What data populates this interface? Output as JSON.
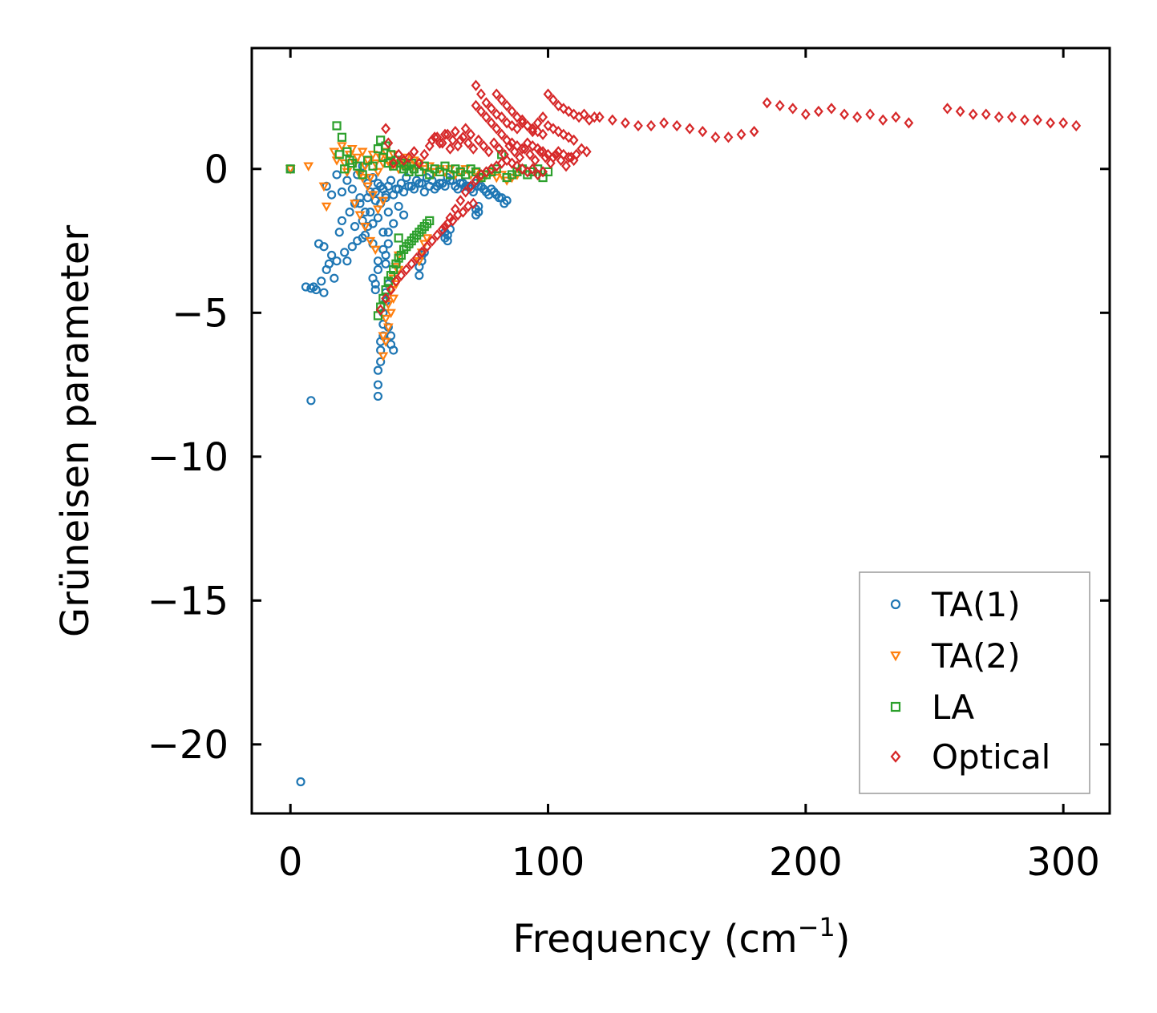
{
  "chart_data": {
    "type": "scatter",
    "title": "",
    "xlabel": "Frequency (cm",
    "xlabel_sup": "−1",
    "xlabel_close": ")",
    "ylabel": "Grüneisen parameter",
    "xlim": [
      -15,
      318
    ],
    "ylim": [
      -22.4,
      4.2
    ],
    "xticks": [
      0,
      100,
      200,
      300
    ],
    "xtick_labels": [
      "0",
      "100",
      "200",
      "300"
    ],
    "yticks": [
      0,
      -5,
      -10,
      -15,
      -20
    ],
    "ytick_labels": [
      "0",
      "−5",
      "−10",
      "−15",
      "−20"
    ],
    "grid": false,
    "legend_position": "lower-right",
    "series": [
      {
        "name": "TA(1)",
        "marker": "circle",
        "color": "#1f77b4",
        "x": [
          0,
          4,
          8,
          6,
          8,
          10,
          12,
          13,
          14,
          9,
          11,
          13,
          15,
          16,
          17,
          18,
          19,
          20,
          21,
          22,
          23,
          24,
          25,
          26,
          27,
          28,
          29,
          30,
          31,
          32,
          33,
          34,
          35,
          36,
          37,
          38,
          40,
          42,
          44,
          46,
          48,
          50,
          52,
          54,
          56,
          58,
          60,
          62,
          64,
          66,
          68,
          70,
          72,
          74,
          76,
          78,
          80,
          82,
          84,
          34,
          34,
          34,
          35,
          35,
          35,
          36,
          36,
          36,
          37,
          37,
          38,
          38,
          39,
          39,
          40,
          32,
          33,
          34,
          33,
          34,
          36,
          37,
          38,
          37,
          38,
          50,
          50,
          51,
          51,
          52,
          60,
          60,
          61,
          61,
          62,
          72,
          72,
          73,
          73,
          14,
          16,
          18,
          20,
          22,
          24,
          26,
          28,
          30,
          32,
          25,
          27,
          29,
          31,
          33,
          35,
          37,
          39,
          41,
          43,
          45,
          47,
          49,
          51,
          53,
          55,
          57,
          59,
          61,
          63,
          65,
          67,
          69,
          71,
          73,
          75,
          77,
          79,
          81,
          83,
          28,
          30,
          32,
          34,
          36,
          38,
          40,
          42,
          44
        ],
        "y": [
          0,
          -21.3,
          -8.05,
          -4.1,
          -4.15,
          -4.2,
          -3.9,
          -4.3,
          -3.5,
          -4.1,
          -2.6,
          -2.7,
          -3.3,
          -3.0,
          -3.8,
          -3.2,
          -2.2,
          -1.8,
          -2.9,
          -3.2,
          -1.5,
          -2.7,
          -2.0,
          -2.5,
          -1.2,
          -1.8,
          -2.3,
          -1.0,
          -1.5,
          -1.9,
          -0.8,
          -0.5,
          -1.2,
          -0.7,
          -1.0,
          -0.6,
          -0.9,
          -0.7,
          -0.8,
          -0.6,
          -0.7,
          -0.5,
          -0.8,
          -0.6,
          -0.7,
          -0.5,
          -0.6,
          -0.4,
          -0.6,
          -0.5,
          -0.6,
          -0.7,
          -0.5,
          -0.6,
          -0.8,
          -0.7,
          -0.9,
          -1.0,
          -1.1,
          -7.9,
          -7.5,
          -7.0,
          -6.7,
          -6.3,
          -6.0,
          -5.8,
          -5.4,
          -5.0,
          -4.6,
          -4.3,
          -4.0,
          -5.5,
          -5.8,
          -6.1,
          -6.3,
          -3.8,
          -4.0,
          -3.2,
          -4.2,
          -3.5,
          -2.8,
          -3.0,
          -2.6,
          -3.3,
          -2.2,
          -3.7,
          -3.4,
          -3.2,
          -3.0,
          -2.9,
          -2.2,
          -2.4,
          -2.5,
          -2.3,
          -2.1,
          -1.4,
          -1.6,
          -1.5,
          -1.3,
          -0.6,
          -0.9,
          -0.2,
          -0.8,
          -0.4,
          -0.7,
          -0.2,
          0.1,
          -0.5,
          -0.3,
          -1.2,
          -1.0,
          -1.5,
          -0.8,
          -1.1,
          -0.6,
          -0.9,
          -0.4,
          -0.7,
          -0.5,
          -0.3,
          -0.6,
          -0.4,
          -0.5,
          -0.3,
          -0.4,
          -0.6,
          -0.5,
          -0.3,
          -0.4,
          -0.7,
          -0.5,
          -0.6,
          -0.8,
          -0.6,
          -0.7,
          -0.9,
          -0.8,
          -1.0,
          -1.2,
          -2.4,
          -2.0,
          -2.6,
          -1.7,
          -2.2,
          -1.5,
          -1.9,
          -1.3,
          -1.6
        ]
      },
      {
        "name": "TA(2)",
        "marker": "triangle-down",
        "color": "#ff7f0e",
        "x": [
          0,
          7,
          13,
          14,
          17,
          18,
          20,
          21,
          22,
          23,
          24,
          25,
          26,
          27,
          28,
          29,
          30,
          31,
          32,
          33,
          34,
          35,
          36,
          37,
          38,
          39,
          40,
          41,
          42,
          43,
          44,
          45,
          46,
          47,
          48,
          49,
          50,
          52,
          54,
          56,
          58,
          60,
          62,
          64,
          66,
          68,
          70,
          72,
          74,
          76,
          78,
          80,
          82,
          84,
          86,
          88,
          36,
          37,
          38,
          39,
          40,
          41,
          42,
          36,
          37,
          38,
          39,
          40,
          41,
          42,
          50,
          51,
          52,
          53,
          25,
          27,
          29,
          31,
          33,
          28,
          30,
          32,
          34,
          36
        ],
        "y": [
          0,
          0.1,
          -0.6,
          -1.3,
          0.6,
          0.3,
          0.8,
          0.2,
          -0.1,
          0.5,
          0.7,
          0.2,
          0.4,
          -0.2,
          0.6,
          0.1,
          0.3,
          -0.3,
          0.5,
          0.2,
          -0.1,
          0.4,
          0.2,
          0.6,
          0.3,
          0.1,
          0.5,
          0.2,
          0.0,
          0.3,
          0.1,
          0.4,
          0.2,
          0.0,
          0.3,
          0.1,
          0.2,
          0.0,
          0.1,
          -0.1,
          0.0,
          -0.1,
          0.0,
          -0.2,
          -0.1,
          0.0,
          -0.2,
          -0.1,
          -0.3,
          -0.2,
          -0.1,
          -0.3,
          -0.2,
          -0.4,
          -0.3,
          -0.2,
          -6.5,
          -6.0,
          -5.5,
          -5.0,
          -4.5,
          -4.0,
          -3.5,
          -5.8,
          -5.2,
          -4.7,
          -4.2,
          -3.8,
          -3.4,
          -3.0,
          -3.2,
          -2.9,
          -2.6,
          -2.4,
          -1.2,
          -1.6,
          -2.0,
          -2.5,
          -2.8,
          -0.3,
          -0.6,
          -0.9,
          -1.4,
          -1.1
        ]
      },
      {
        "name": "LA",
        "marker": "square",
        "color": "#2ca02c",
        "x": [
          0,
          18,
          19,
          20,
          21,
          22,
          23,
          24,
          26,
          28,
          30,
          32,
          34,
          35,
          36,
          37,
          38,
          39,
          40,
          41,
          42,
          43,
          44,
          45,
          46,
          47,
          48,
          50,
          52,
          54,
          56,
          58,
          60,
          62,
          64,
          66,
          68,
          70,
          72,
          74,
          76,
          78,
          80,
          82,
          84,
          86,
          88,
          90,
          92,
          94,
          96,
          98,
          100,
          34,
          35,
          36,
          37,
          38,
          39,
          40,
          41,
          42,
          43,
          44,
          45,
          46,
          47,
          48,
          49,
          50,
          51,
          52,
          53,
          54
        ],
        "y": [
          0,
          1.5,
          0.5,
          1.1,
          0.0,
          0.6,
          0.3,
          0.2,
          0.1,
          -0.2,
          0.3,
          0.1,
          0.7,
          1.0,
          0.4,
          0.8,
          0.2,
          0.5,
          0.1,
          0.3,
          -2.4,
          0.2,
          0.0,
          0.1,
          -0.1,
          0.2,
          0.0,
          -0.1,
          0.1,
          -0.2,
          0.0,
          -0.1,
          0.1,
          -0.2,
          0.0,
          -0.1,
          -0.2,
          0.0,
          -0.1,
          -0.3,
          -0.2,
          -0.1,
          0.0,
          0.5,
          -0.3,
          -0.2,
          -0.1,
          0.0,
          -0.2,
          -0.1,
          0.0,
          -0.3,
          -0.1,
          -5.1,
          -4.8,
          -4.5,
          -4.2,
          -3.9,
          -3.7,
          -3.5,
          -3.3,
          -3.1,
          -3.0,
          -2.8,
          -2.7,
          -2.6,
          -2.5,
          -2.4,
          -2.3,
          -2.2,
          -2.1,
          -2.0,
          -1.9,
          -1.8
        ]
      },
      {
        "name": "Optical",
        "marker": "diamond",
        "color": "#d62728",
        "x": [
          37,
          38,
          40,
          42,
          44,
          46,
          48,
          50,
          52,
          54,
          56,
          58,
          60,
          62,
          64,
          66,
          68,
          70,
          72,
          74,
          76,
          78,
          80,
          82,
          84,
          86,
          88,
          90,
          92,
          94,
          96,
          98,
          100,
          102,
          104,
          106,
          108,
          110,
          112,
          114,
          116,
          118,
          120,
          125,
          130,
          135,
          140,
          145,
          150,
          155,
          160,
          165,
          170,
          175,
          180,
          185,
          190,
          195,
          200,
          205,
          210,
          215,
          220,
          225,
          230,
          235,
          240,
          255,
          260,
          265,
          270,
          275,
          280,
          285,
          290,
          295,
          300,
          305,
          35,
          37,
          39,
          41,
          43,
          45,
          47,
          49,
          51,
          53,
          55,
          57,
          59,
          61,
          63,
          65,
          67,
          69,
          71,
          55,
          57,
          59,
          61,
          63,
          65,
          67,
          69,
          71,
          73,
          75,
          77,
          79,
          81,
          83,
          85,
          87,
          89,
          91,
          93,
          95,
          97,
          99,
          101,
          103,
          105,
          107,
          109,
          111,
          113,
          115,
          80,
          82,
          84,
          86,
          88,
          90,
          92,
          94,
          96,
          98,
          100,
          102,
          104,
          106,
          108,
          110,
          72,
          74,
          76,
          78,
          80,
          82,
          84,
          86,
          88,
          90,
          92,
          94,
          96,
          98,
          100,
          102,
          104,
          106,
          108,
          110,
          60,
          62,
          64,
          66,
          68,
          70,
          72,
          74,
          76,
          78,
          80,
          82,
          84,
          86,
          88,
          90,
          92,
          94,
          96,
          98
        ],
        "y": [
          1.4,
          0.9,
          0.2,
          0.5,
          0.3,
          0.4,
          0.6,
          0.2,
          0.5,
          0.8,
          1.1,
          0.9,
          1.2,
          0.7,
          1.3,
          1.0,
          1.4,
          1.2,
          2.9,
          2.6,
          2.3,
          2.1,
          1.9,
          1.8,
          1.6,
          1.5,
          1.4,
          1.7,
          1.5,
          1.3,
          1.6,
          1.8,
          2.6,
          2.4,
          2.2,
          2.1,
          2.0,
          1.9,
          1.8,
          1.9,
          1.7,
          1.8,
          1.8,
          1.7,
          1.6,
          1.5,
          1.5,
          1.6,
          1.5,
          1.4,
          1.3,
          1.1,
          1.1,
          1.2,
          1.3,
          2.3,
          2.2,
          2.1,
          1.9,
          2.0,
          2.1,
          1.9,
          1.8,
          1.9,
          1.7,
          1.8,
          1.6,
          2.1,
          2.0,
          1.9,
          1.9,
          1.8,
          1.8,
          1.7,
          1.7,
          1.6,
          1.6,
          1.5,
          -4.9,
          -4.5,
          -4.2,
          -3.9,
          -3.7,
          -3.5,
          -3.3,
          -3.1,
          -2.9,
          -2.7,
          -2.5,
          -2.3,
          -2.1,
          -1.9,
          -1.8,
          -1.6,
          -1.5,
          -1.3,
          -1.2,
          1.0,
          1.1,
          0.9,
          1.2,
          1.0,
          0.8,
          1.1,
          0.9,
          0.7,
          1.0,
          0.8,
          0.6,
          0.9,
          0.7,
          0.5,
          0.8,
          0.6,
          0.4,
          0.7,
          0.5,
          0.3,
          0.6,
          0.4,
          0.2,
          0.5,
          0.3,
          0.1,
          0.4,
          0.5,
          0.7,
          0.6,
          2.6,
          2.4,
          2.2,
          2.0,
          1.8,
          1.6,
          1.5,
          1.4,
          1.3,
          1.2,
          1.5,
          1.4,
          1.3,
          1.2,
          1.1,
          1.0,
          2.2,
          2.0,
          1.8,
          1.6,
          1.4,
          1.2,
          1.0,
          0.9,
          0.8,
          0.7,
          0.9,
          0.8,
          0.7,
          0.6,
          0.5,
          0.4,
          0.6,
          0.5,
          0.4,
          0.3,
          -2.0,
          -1.7,
          -1.4,
          -1.1,
          -0.8,
          -0.6,
          -0.4,
          -0.2,
          -0.1,
          0.0,
          0.1,
          0.2,
          0.3,
          0.2,
          0.1,
          0.0,
          -0.1,
          0.0,
          -0.2,
          -0.1
        ]
      }
    ]
  }
}
